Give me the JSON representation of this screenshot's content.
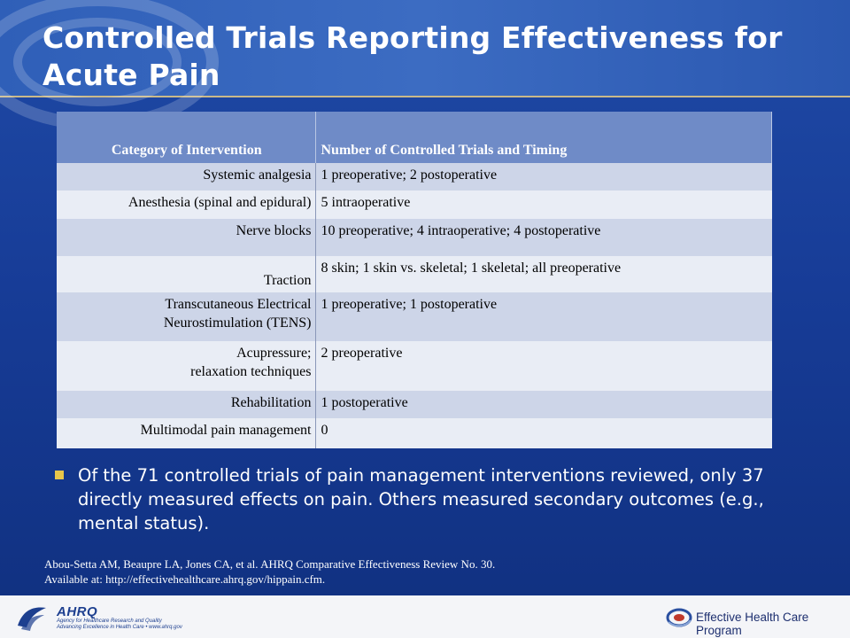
{
  "slide": {
    "title": "Controlled Trials Reporting Effectiveness for Acute Pain"
  },
  "table": {
    "headers": [
      "Category of Intervention",
      "Number of Controlled Trials  and Timing"
    ],
    "rows": [
      {
        "category": [
          "Systemic analgesia"
        ],
        "trials": "1 preoperative; 2 postoperative"
      },
      {
        "category": [
          "Anesthesia (spinal and epidural)"
        ],
        "trials": "5  intraoperative"
      },
      {
        "category": [
          "Nerve blocks"
        ],
        "trials": "10 preoperative; 4 intraoperative; 4 postoperative"
      },
      {
        "category": [
          "Traction"
        ],
        "trials": "8  skin; 1 skin vs. skeletal; 1 skeletal; all preoperative"
      },
      {
        "category": [
          "Transcutaneous Electrical",
          "Neurostimulation (TENS)"
        ],
        "trials": "1 preoperative; 1 postoperative"
      },
      {
        "category": [
          "Acupressure;",
          "relaxation techniques"
        ],
        "trials": "2 preoperative"
      },
      {
        "category": [
          "Rehabilitation"
        ],
        "trials": "1 postoperative"
      },
      {
        "category": [
          "Multimodal pain management"
        ],
        "trials": "0"
      }
    ]
  },
  "bullet": "Of the 71 controlled trials of pain management interventions reviewed, only 37 directly measured effects on pain. Others measured secondary outcomes (e.g., mental status).",
  "citation": {
    "line1": "Abou-Setta AM, Beaupre LA, Jones CA, et al. AHRQ Comparative Effectiveness Review No. 30.",
    "line2": "Available at:  http://effectivehealthcare.ahrq.gov/hippain.cfm."
  },
  "footer": {
    "ahrq_name": "AHRQ",
    "ahrq_tagline1": "Agency for Healthcare Research and Quality",
    "ahrq_tagline2": "Advancing Excellence in Health Care • www.ahrq.gov",
    "ehc_name": "Effective Health Care Program",
    "hhs_icon": "hhs-eagle-icon",
    "ehc_icon": "ehc-swirl-icon"
  },
  "colors": {
    "background": "#173c97",
    "title_band": "#3c6cc2",
    "header_row": "#6f8bc7",
    "row_odd": "#cdd5e8",
    "row_even": "#e9edf5",
    "bullet_marker": "#e8c64a"
  }
}
